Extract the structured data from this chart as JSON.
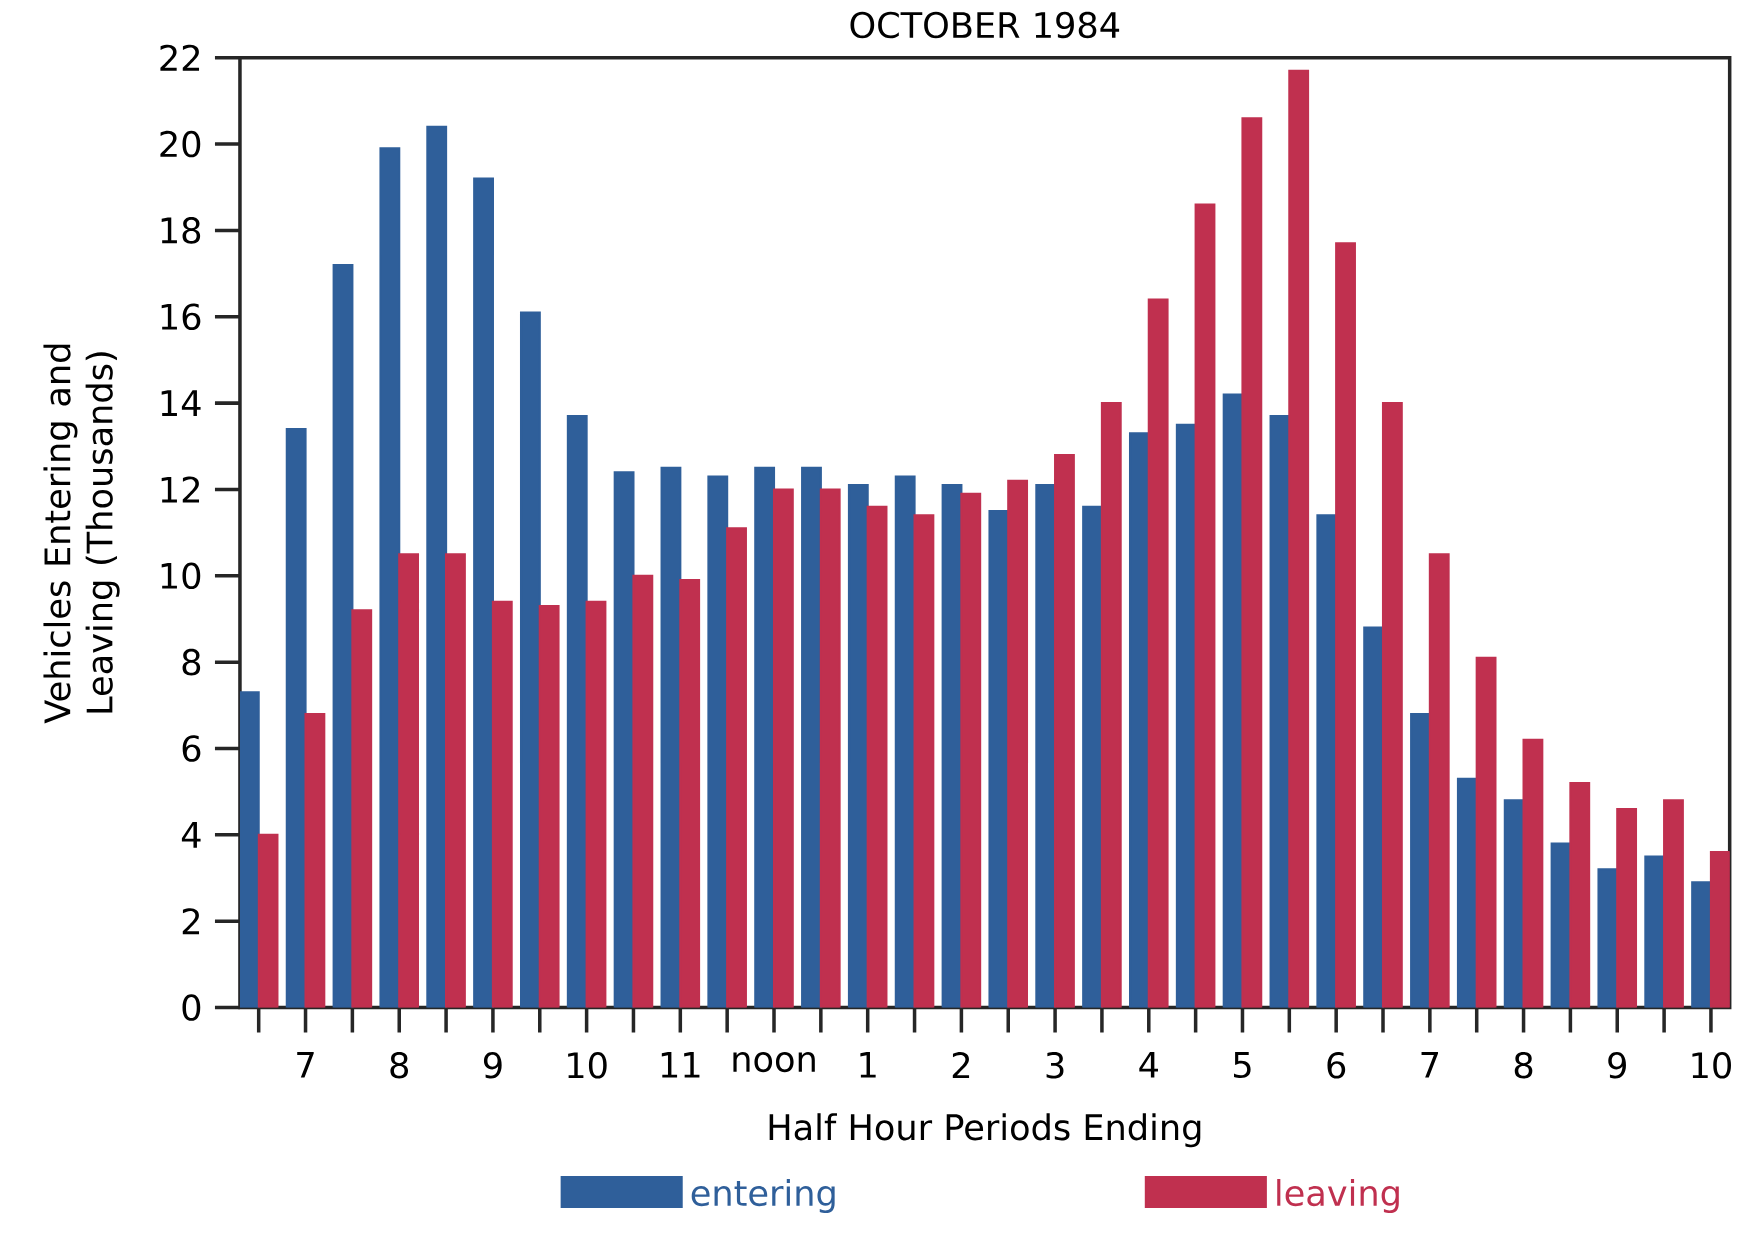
{
  "chart_data": {
    "type": "bar",
    "title": "OCTOBER 1984",
    "xlabel": "Half Hour Periods Ending",
    "ylabel": "Vehicles Entering and Leaving (Thousands)",
    "categories": [
      null,
      "7",
      null,
      "8",
      null,
      "9",
      null,
      "10",
      null,
      "11",
      null,
      "noon",
      null,
      "1",
      null,
      "2",
      null,
      "3",
      null,
      "4",
      null,
      "5",
      null,
      "6",
      null,
      "7",
      null,
      "8",
      null,
      "9",
      null,
      "10"
    ],
    "series": [
      {
        "name": "entering",
        "color": "#2f5f9a",
        "values": [
          7.3,
          13.4,
          17.2,
          19.9,
          20.4,
          19.2,
          16.1,
          13.7,
          12.4,
          12.5,
          12.3,
          12.5,
          12.5,
          12.1,
          12.3,
          12.1,
          11.5,
          12.1,
          11.6,
          13.3,
          13.5,
          14.2,
          13.7,
          11.4,
          8.8,
          6.8,
          5.3,
          4.8,
          3.8,
          3.2,
          3.5,
          2.9
        ]
      },
      {
        "name": "leaving",
        "color": "#c0304f",
        "values": [
          4.0,
          6.8,
          9.2,
          10.5,
          10.5,
          9.4,
          9.3,
          9.4,
          10.0,
          9.9,
          11.1,
          12.0,
          12.0,
          11.6,
          11.4,
          11.9,
          12.2,
          12.8,
          14.0,
          16.4,
          18.6,
          20.6,
          21.7,
          17.7,
          14.0,
          10.5,
          8.1,
          6.2,
          5.2,
          4.6,
          4.8,
          3.6
        ]
      }
    ],
    "ylim": [
      0,
      22
    ],
    "yticks": [
      0,
      2,
      4,
      6,
      8,
      10,
      12,
      14,
      16,
      18,
      20,
      22
    ],
    "grid": false,
    "legend": "bottom"
  }
}
